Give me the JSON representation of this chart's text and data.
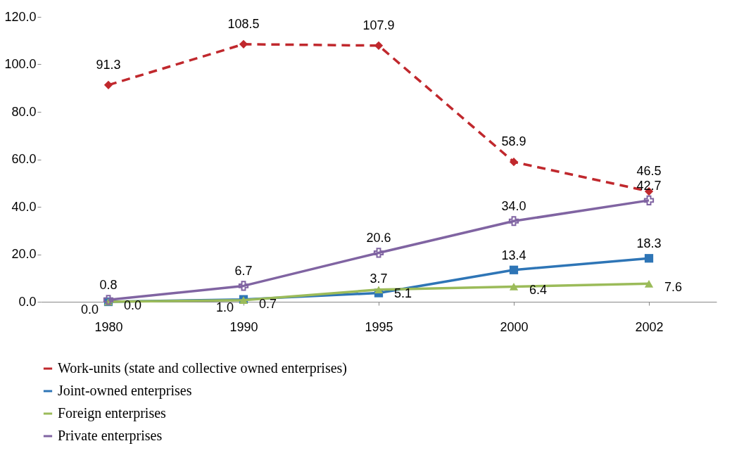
{
  "chart_data": {
    "type": "line",
    "categories": [
      "1980",
      "1990",
      "1995",
      "2000",
      "2002"
    ],
    "series": [
      {
        "name": "Work-units (state and collective owned enterprises)",
        "color": "#c0282d",
        "values": [
          91.3,
          108.5,
          107.9,
          58.9,
          46.5
        ],
        "value_labels": [
          "91.3",
          "108.5",
          "107.9",
          "58.9",
          "46.5"
        ],
        "marker": "diamond",
        "line_style": "dashed"
      },
      {
        "name": "Joint-owned enterprises",
        "color": "#2e75b6",
        "values": [
          0.0,
          1.0,
          3.7,
          13.4,
          18.3
        ],
        "value_labels": [
          "0.0",
          "1.0",
          "3.7",
          "13.4",
          "18.3"
        ],
        "marker": "square",
        "line_style": "solid"
      },
      {
        "name": "Foreign enterprises",
        "color": "#9bbb59",
        "values": [
          0.0,
          0.7,
          5.1,
          6.4,
          7.6
        ],
        "value_labels": [
          "0.0",
          "0.7",
          "5.1",
          "6.4",
          "7.6"
        ],
        "marker": "triangle",
        "line_style": "solid"
      },
      {
        "name": "Private enterprises",
        "color": "#8064a2",
        "values": [
          0.8,
          6.7,
          20.6,
          34.0,
          42.7
        ],
        "value_labels": [
          "0.8",
          "6.7",
          "20.6",
          "34.0",
          "42.7"
        ],
        "marker": "cross",
        "line_style": "solid"
      }
    ],
    "ylim": [
      0,
      120
    ],
    "yticks": [
      {
        "value": 0,
        "label": "0.0"
      },
      {
        "value": 20,
        "label": "20.0"
      },
      {
        "value": 40,
        "label": "40.0"
      },
      {
        "value": 60,
        "label": "60.0"
      },
      {
        "value": 80,
        "label": "80.0"
      },
      {
        "value": 100,
        "label": "100.0"
      },
      {
        "value": 120,
        "label": "120.0"
      }
    ],
    "grid": false,
    "legend": "bottom"
  }
}
